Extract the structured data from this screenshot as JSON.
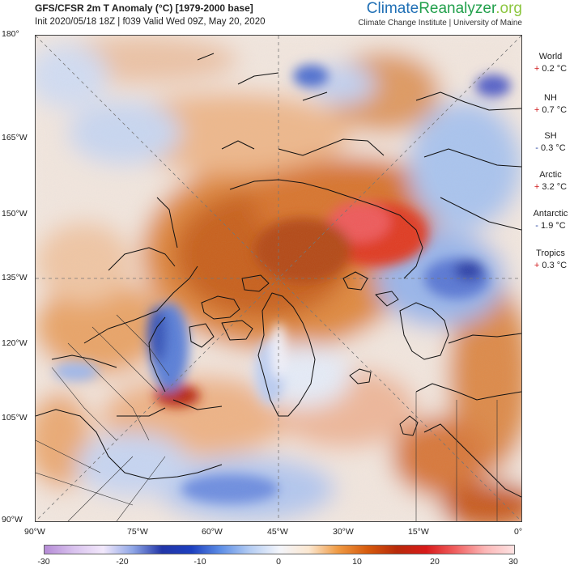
{
  "header": {
    "title": "GFS/CFSR 2m T Anomaly (°C) [1979-2000 base]",
    "subtitle": "Init 2020/05/18 18Z | f039 Valid Wed 09Z, May 20, 2020",
    "brand_part1": "Climate",
    "brand_part2": "Reanalyzer",
    "brand_part3": ".org",
    "affiliation": "Climate Change Institute | University of Maine"
  },
  "lat_labels": [
    "180°",
    "165°W",
    "150°W",
    "135°W",
    "120°W",
    "105°W",
    "90°W"
  ],
  "lon_labels": [
    "90°W",
    "75°W",
    "60°W",
    "45°W",
    "30°W",
    "15°W",
    "0°"
  ],
  "stats": [
    {
      "label": "World",
      "sign": "+",
      "value": "0.2 °C"
    },
    {
      "label": "NH",
      "sign": "+",
      "value": "0.7 °C"
    },
    {
      "label": "SH",
      "sign": "-",
      "value": "0.3 °C"
    },
    {
      "label": "Arctic",
      "sign": "+",
      "value": "3.2 °C"
    },
    {
      "label": "Antarctic",
      "sign": "-",
      "value": "1.9 °C"
    },
    {
      "label": "Tropics",
      "sign": "+",
      "value": "0.3 °C"
    }
  ],
  "colorbar": {
    "ticks": [
      "-30",
      "-20",
      "-10",
      "0",
      "10",
      "20",
      "30"
    ],
    "colors": [
      "#b58bd6",
      "#d9c2ee",
      "#f2e8fb",
      "#8fa6e6",
      "#2236a8",
      "#1d3fbf",
      "#5d8ee6",
      "#b5cdf3",
      "#f3f5fb",
      "#fbe7d0",
      "#ef9a43",
      "#d65a0d",
      "#b82a0a",
      "#d81a1a",
      "#f06060",
      "#fbb6b6",
      "#fde2e2"
    ]
  }
}
